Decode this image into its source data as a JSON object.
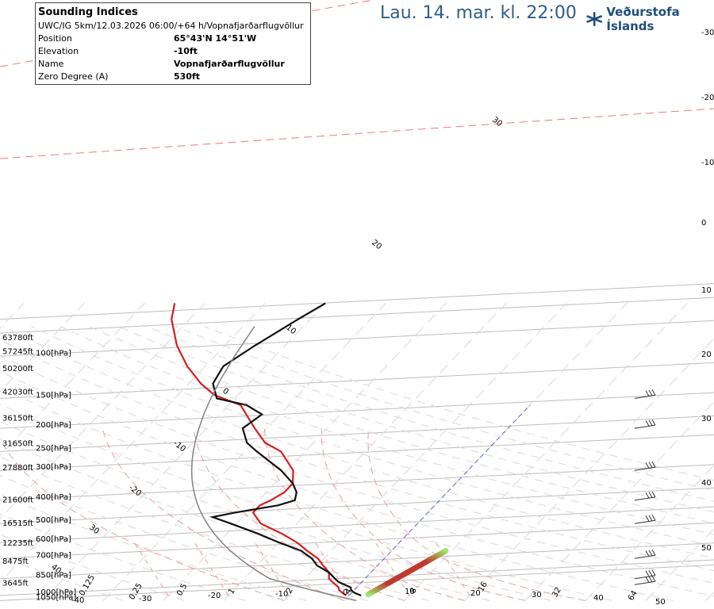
{
  "header": {
    "title": "Lau. 14. mar. kl. 22:00",
    "brand": "Veðurstofa Íslands"
  },
  "info": {
    "title": "Sounding Indices",
    "subtitle": "UWC/IG 5km/12.03.2026 06:00/+64 h/Vopnafjarðarflugvöllur",
    "rows": [
      {
        "label": "Position",
        "value": "65°43'N 14°51'W"
      },
      {
        "label": "Elevation",
        "value": "-10ft"
      },
      {
        "label": "Name",
        "value": "Vopnafjarðarflugvöllur"
      },
      {
        "label": "Zero Degree (A)",
        "value": "530ft"
      }
    ]
  },
  "chart_data": {
    "type": "skew-t",
    "x_units": "°C",
    "y_units": "hPa",
    "y_range": [
      1050,
      100
    ],
    "pressure_levels": [
      {
        "p": 1000,
        "label": "1000[hPa]"
      },
      {
        "p": 1050,
        "label": "1050[hPa]"
      },
      {
        "p": 850,
        "label": "850[hPa]"
      },
      {
        "p": 700,
        "label": "700[hPa]"
      },
      {
        "p": 600,
        "label": "600[hPa]"
      },
      {
        "p": 500,
        "label": "500[hPa]"
      },
      {
        "p": 400,
        "label": "400[hPa]"
      },
      {
        "p": 300,
        "label": "300[hPa]"
      },
      {
        "p": 250,
        "label": "250[hPa]"
      },
      {
        "p": 200,
        "label": "200[hPa]"
      },
      {
        "p": 150,
        "label": "150[hPa]"
      },
      {
        "p": 100,
        "label": "100[hPa]"
      }
    ],
    "altitude_labels": [
      {
        "p": 83,
        "label": "63780ft"
      },
      {
        "p": 95,
        "label": "57245ft"
      },
      {
        "p": 112,
        "label": "50200ft"
      },
      {
        "p": 140,
        "label": "42030ft"
      },
      {
        "p": 180,
        "label": "36150ft"
      },
      {
        "p": 230,
        "label": "31650ft"
      },
      {
        "p": 290,
        "label": "27880ft"
      },
      {
        "p": 395,
        "label": "21600ft"
      },
      {
        "p": 495,
        "label": "16515ft"
      },
      {
        "p": 600,
        "label": "12235ft"
      },
      {
        "p": 715,
        "label": "8475ft"
      },
      {
        "p": 880,
        "label": "3645ft"
      }
    ],
    "bottom_temp_labels": [
      -40,
      -30,
      -20,
      -10,
      0,
      10,
      20,
      30,
      40,
      50
    ],
    "bottom_mixing_labels": [
      "0.125",
      "0.25",
      "0.5",
      "1",
      "2",
      "4",
      "8",
      "16",
      "32",
      "64"
    ],
    "right_labels": [
      "-30",
      "-20",
      "-10",
      "0",
      "10",
      "20",
      "30",
      "40",
      "50"
    ],
    "diagonal_labels": [
      "30",
      "20",
      "10",
      "0",
      "-10",
      "-20",
      "30",
      "40"
    ],
    "temperature": [
      {
        "p": 1000,
        "t": 2
      },
      {
        "p": 975,
        "t": 0.5
      },
      {
        "p": 950,
        "t": -0.5
      },
      {
        "p": 925,
        "t": -1
      },
      {
        "p": 900,
        "t": -2.5
      },
      {
        "p": 875,
        "t": -4
      },
      {
        "p": 850,
        "t": -5
      },
      {
        "p": 800,
        "t": -7
      },
      {
        "p": 750,
        "t": -10
      },
      {
        "p": 700,
        "t": -12
      },
      {
        "p": 650,
        "t": -15
      },
      {
        "p": 600,
        "t": -20
      },
      {
        "p": 550,
        "t": -25
      },
      {
        "p": 500,
        "t": -31
      },
      {
        "p": 470,
        "t": -35
      },
      {
        "p": 450,
        "t": -32
      },
      {
        "p": 420,
        "t": -26
      },
      {
        "p": 400,
        "t": -24
      },
      {
        "p": 370,
        "t": -25
      },
      {
        "p": 340,
        "t": -27
      },
      {
        "p": 300,
        "t": -31
      },
      {
        "p": 250,
        "t": -38
      },
      {
        "p": 230,
        "t": -41
      },
      {
        "p": 200,
        "t": -44
      },
      {
        "p": 175,
        "t": -43
      },
      {
        "p": 160,
        "t": -47
      },
      {
        "p": 150,
        "t": -53
      },
      {
        "p": 130,
        "t": -56
      },
      {
        "p": 110,
        "t": -57
      },
      {
        "p": 90,
        "t": -55
      },
      {
        "p": 70,
        "t": -52
      },
      {
        "p": 60,
        "t": -50
      }
    ],
    "dewpoint": [
      {
        "p": 1000,
        "t": -0.5
      },
      {
        "p": 975,
        "t": -1.5
      },
      {
        "p": 950,
        "t": -2.5
      },
      {
        "p": 925,
        "t": -3
      },
      {
        "p": 900,
        "t": -4
      },
      {
        "p": 875,
        "t": -5
      },
      {
        "p": 850,
        "t": -6
      },
      {
        "p": 800,
        "t": -7
      },
      {
        "p": 750,
        "t": -9
      },
      {
        "p": 700,
        "t": -11
      },
      {
        "p": 650,
        "t": -14
      },
      {
        "p": 600,
        "t": -17
      },
      {
        "p": 550,
        "t": -21
      },
      {
        "p": 500,
        "t": -26
      },
      {
        "p": 450,
        "t": -29
      },
      {
        "p": 420,
        "t": -29
      },
      {
        "p": 400,
        "t": -28
      },
      {
        "p": 370,
        "t": -27
      },
      {
        "p": 340,
        "t": -27
      },
      {
        "p": 300,
        "t": -29
      },
      {
        "p": 250,
        "t": -34
      },
      {
        "p": 230,
        "t": -38
      },
      {
        "p": 200,
        "t": -42
      },
      {
        "p": 160,
        "t": -48
      },
      {
        "p": 145,
        "t": -54
      },
      {
        "p": 130,
        "t": -58
      },
      {
        "p": 110,
        "t": -63
      },
      {
        "p": 90,
        "t": -68
      },
      {
        "p": 70,
        "t": -73
      },
      {
        "p": 60,
        "t": -75
      }
    ],
    "parcel_from": {
      "p": 1000,
      "t": 2,
      "td": -0.5
    },
    "wind_barb_levels": [
      150,
      200,
      300,
      400,
      500,
      700,
      850,
      900
    ]
  }
}
